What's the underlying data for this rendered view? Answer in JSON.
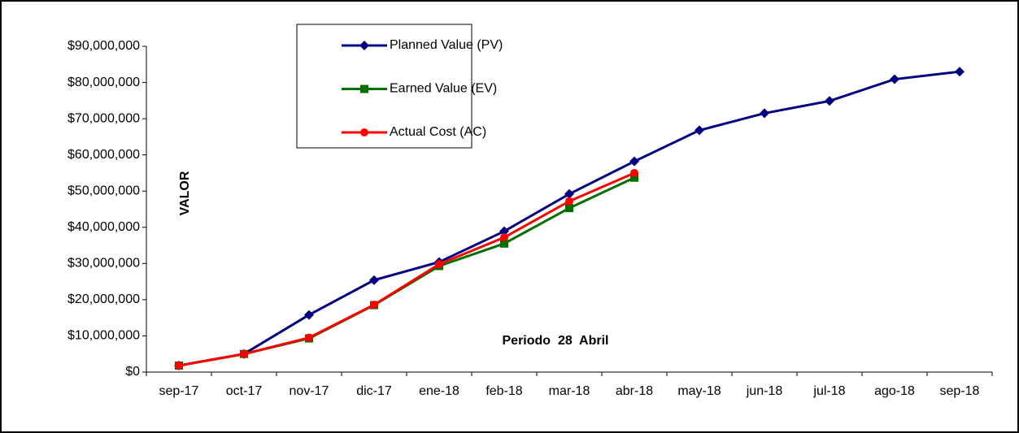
{
  "chart_data": {
    "type": "line",
    "y_label": "VALOR",
    "annotation": "Periodo  28  Abril",
    "categories": [
      "sep-17",
      "oct-17",
      "nov-17",
      "dic-17",
      "ene-18",
      "feb-18",
      "mar-18",
      "abr-18",
      "may-18",
      "jun-18",
      "jul-18",
      "ago-18",
      "sep-18"
    ],
    "series": [
      {
        "name": "Planned Value (PV)",
        "color": "#000080",
        "marker": "diamond",
        "values": [
          1800000,
          5000000,
          15800000,
          25400000,
          30400000,
          38900000,
          49200000,
          58200000,
          66800000,
          71500000,
          74900000,
          80900000,
          83000000
        ]
      },
      {
        "name": "Earned Value (EV)",
        "color": "#007000",
        "marker": "square",
        "values": [
          1800000,
          5000000,
          9300000,
          18500000,
          29300000,
          35500000,
          45300000,
          53700000,
          null,
          null,
          null,
          null,
          null
        ]
      },
      {
        "name": "Actual Cost (AC)",
        "color": "#ff0000",
        "marker": "circle",
        "values": [
          1800000,
          5000000,
          9500000,
          18600000,
          29800000,
          37200000,
          47200000,
          55000000,
          null,
          null,
          null,
          null,
          null
        ]
      }
    ],
    "ylim": [
      0,
      90000000
    ],
    "yticks": [
      {
        "value": 0,
        "label": "$0"
      },
      {
        "value": 10000000,
        "label": "$10,000,000"
      },
      {
        "value": 20000000,
        "label": "$20,000,000"
      },
      {
        "value": 30000000,
        "label": "$30,000,000"
      },
      {
        "value": 40000000,
        "label": "$40,000,000"
      },
      {
        "value": 50000000,
        "label": "$50,000,000"
      },
      {
        "value": 60000000,
        "label": "$60,000,000"
      },
      {
        "value": 70000000,
        "label": "$70,000,000"
      },
      {
        "value": 80000000,
        "label": "$80,000,000"
      },
      {
        "value": 90000000,
        "label": "$90,000,000"
      }
    ],
    "legend": "top-left"
  }
}
